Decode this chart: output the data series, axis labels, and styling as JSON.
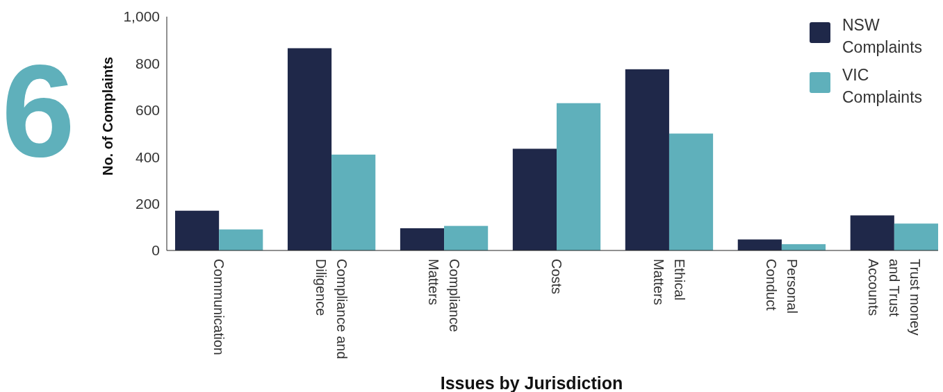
{
  "chart_data": {
    "type": "bar",
    "xlabel": "Issues by Jurisdiction",
    "ylabel": "No. of Complaints",
    "annotations": [
      "6"
    ],
    "categories": [
      "Communication",
      "Compliance and Diligence",
      "Compliance Matters",
      "Costs",
      "Ethical Matters",
      "Personal Conduct",
      "Trust money and Trust Accounts"
    ],
    "series": [
      {
        "name": "NSW Complaints",
        "color": "#1f2849",
        "values": [
          170,
          865,
          95,
          435,
          775,
          47,
          150
        ]
      },
      {
        "name": "VIC Complaints",
        "color": "#5fb0bb",
        "values": [
          90,
          410,
          105,
          630,
          500,
          27,
          115
        ]
      }
    ],
    "ylim": [
      0,
      1000
    ],
    "yticks": [
      0,
      200,
      400,
      600,
      800,
      {
        "value": 1000,
        "label": "1,000"
      }
    ],
    "grid": false,
    "legend": "top right"
  }
}
